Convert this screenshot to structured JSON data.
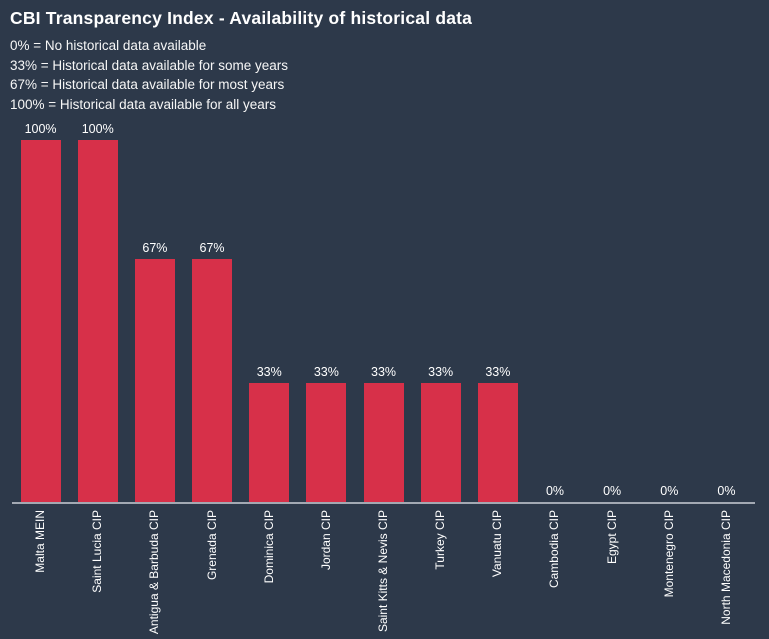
{
  "page": {
    "background": "#2d394a"
  },
  "header": {
    "title": "CBI Transparency Index - Availability of historical data"
  },
  "legend_notes": [
    "0% = No historical data available",
    "33% = Historical data available for some years",
    "67% = Historical data available for most years",
    "100% = Historical data available for all years"
  ],
  "chart_data": {
    "type": "bar",
    "title": "CBI Transparency Index - Availability of historical data",
    "categories": [
      "Malta MEIN",
      "Saint Lucia CIP",
      "Antigua & Barbuda CIP",
      "Grenada CIP",
      "Dominica CIP",
      "Jordan CIP",
      "Saint Kitts & Nevis CIP",
      "Turkey CIP",
      "Vanuatu CIP",
      "Cambodia CIP",
      "Egypt CIP",
      "Montenegro CIP",
      "North Macedonia CIP"
    ],
    "values": [
      100,
      100,
      67,
      67,
      33,
      33,
      33,
      33,
      33,
      0,
      0,
      0,
      0
    ],
    "value_labels": [
      "100%",
      "100%",
      "67%",
      "67%",
      "33%",
      "33%",
      "33%",
      "33%",
      "33%",
      "0%",
      "0%",
      "0%",
      "0%"
    ],
    "xlabel": "",
    "ylabel": "",
    "ylim": [
      0,
      100
    ],
    "grid": false,
    "legend_position": "none",
    "bar_color": "#d73049",
    "axis_color": "#a3a9b3",
    "label_color": "#ffffff"
  }
}
